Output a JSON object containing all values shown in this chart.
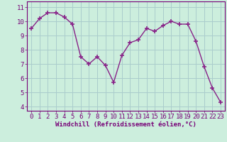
{
  "x": [
    0,
    1,
    2,
    3,
    4,
    5,
    6,
    7,
    8,
    9,
    10,
    11,
    12,
    13,
    14,
    15,
    16,
    17,
    18,
    19,
    20,
    21,
    22,
    23
  ],
  "y": [
    9.5,
    10.2,
    10.6,
    10.6,
    10.3,
    9.8,
    7.5,
    7.0,
    7.5,
    6.9,
    5.7,
    7.6,
    8.5,
    8.7,
    9.5,
    9.3,
    9.7,
    10.0,
    9.8,
    9.8,
    8.6,
    6.8,
    5.3,
    4.3
  ],
  "line_color": "#882288",
  "marker": "+",
  "marker_size": 5,
  "bg_color": "#cceedd",
  "grid_color": "#aacccc",
  "xlabel": "Windchill (Refroidissement éolien,°C)",
  "ylabel_ticks": [
    4,
    5,
    6,
    7,
    8,
    9,
    10,
    11
  ],
  "xlim": [
    -0.5,
    23.5
  ],
  "ylim": [
    3.7,
    11.4
  ],
  "xlabel_fontsize": 6.5,
  "tick_fontsize": 6.5,
  "label_color": "#770077"
}
